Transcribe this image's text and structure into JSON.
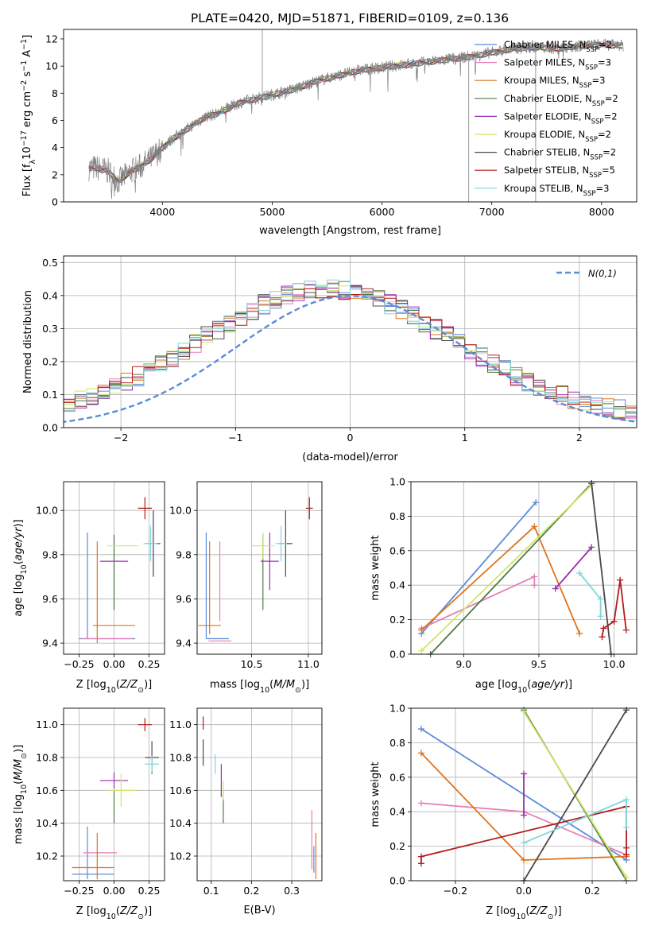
{
  "figure": {
    "title": "PLATE=0420, MJD=51871, FIBERID=0109, z=0.136"
  },
  "models": [
    {
      "name": "Chabrier MILES, N$_{SSP}$=2",
      "label": "Chabrier MILES, N",
      "nssp": "=2",
      "color": "#5b8bd9"
    },
    {
      "name": "Salpeter MILES, N$_{SSP}$=3",
      "label": "Salpeter MILES, N",
      "nssp": "=3",
      "color": "#e67fb8"
    },
    {
      "name": "Kroupa MILES, N$_{SSP}$=3",
      "label": "Kroupa MILES, N",
      "nssp": "=3",
      "color": "#e0731c"
    },
    {
      "name": "Chabrier ELODIE, N$_{SSP}$=2",
      "label": "Chabrier ELODIE, N",
      "nssp": "=2",
      "color": "#4f7a46"
    },
    {
      "name": "Salpeter ELODIE, N$_{SSP}$=2",
      "label": "Salpeter ELODIE, N",
      "nssp": "=2",
      "color": "#9a2fb0"
    },
    {
      "name": "Kroupa ELODIE, N$_{SSP}$=2",
      "label": "Kroupa ELODIE, N",
      "nssp": "=2",
      "color": "#cfe76a"
    },
    {
      "name": "Chabrier STELIB, N$_{SSP}$=2",
      "label": "Chabrier STELIB, N",
      "nssp": "=2",
      "color": "#4a4a4a"
    },
    {
      "name": "Salpeter STELIB, N$_{SSP}$=5",
      "label": "Salpeter STELIB, N",
      "nssp": "=5",
      "color": "#b31b1b"
    },
    {
      "name": "Kroupa STELIB, N$_{SSP}$=3",
      "label": "Kroupa STELIB, N",
      "nssp": "=3",
      "color": "#7fd6dd"
    }
  ],
  "chart_data": [
    {
      "id": "spectrum",
      "type": "line",
      "xlabel": "wavelength [Angstrom, rest frame]",
      "ylabel": "Flux [f_λ10^-17 erg cm^-2 s^-1 A^-1]",
      "xlim": [
        3100,
        8320
      ],
      "ylim": [
        0,
        12.7
      ],
      "xticks": [
        4000,
        5000,
        6000,
        7000,
        8000
      ],
      "yticks": [
        0,
        2,
        4,
        6,
        8,
        10,
        12
      ],
      "grid": false,
      "legend": "top-right",
      "data_color": "#808080",
      "continuum": {
        "x": [
          3330,
          3400,
          3500,
          3600,
          3700,
          3800,
          3900,
          4000,
          4100,
          4200,
          4300,
          4400,
          4500,
          4600,
          4700,
          4800,
          4900,
          5000,
          5200,
          5400,
          5600,
          5800,
          6000,
          6200,
          6400,
          6600,
          6800,
          7000,
          7200,
          7400,
          7600,
          7800,
          8000,
          8200
        ],
        "y": [
          2.5,
          2.5,
          2.3,
          1.5,
          2.2,
          2.6,
          3.2,
          4.0,
          4.7,
          5.2,
          5.8,
          6.3,
          6.5,
          6.9,
          7.3,
          7.5,
          7.7,
          7.9,
          8.3,
          8.9,
          9.3,
          9.7,
          9.9,
          10.1,
          10.3,
          10.5,
          10.7,
          11.0,
          11.3,
          11.4,
          11.3,
          11.5,
          11.6,
          11.5
        ]
      },
      "spikes": [
        {
          "x": 4910,
          "y": 12.7
        },
        {
          "x": 6790,
          "y": 0
        },
        {
          "x": 7400,
          "y": 0
        }
      ]
    },
    {
      "id": "residuals",
      "type": "line",
      "xlabel": "(data-model)/error",
      "ylabel": "Normed distribution",
      "xlim": [
        -2.5,
        2.5
      ],
      "ylim": [
        0,
        0.52
      ],
      "xticks": [
        -2,
        -1,
        0,
        1,
        2
      ],
      "yticks": [
        0.0,
        0.1,
        0.2,
        0.3,
        0.4,
        0.5
      ],
      "grid": true,
      "legend": "top-right",
      "gaussian_label": "N(0,1)",
      "gaussian_color": "#5b8bd9",
      "histogram_bin_width": 0.1
    },
    {
      "id": "age_vs_Z",
      "type": "scatter",
      "xlabel": "Z [log10(Z/Z⊙)]",
      "ylabel": "age  [log10(age/yr)]",
      "xlim": [
        -0.36,
        0.36
      ],
      "ylim": [
        9.35,
        10.13
      ],
      "xticks": [
        -0.25,
        0.0,
        0.25
      ],
      "yticks": [
        9.4,
        9.6,
        9.8,
        10.0
      ],
      "xticklabels": [
        "−0.25",
        "0.00",
        "0.25"
      ],
      "yticklabels": [
        "9.4",
        "9.6",
        "9.8",
        "10.0"
      ],
      "grid": true,
      "points": [
        {
          "model": 0,
          "x": -0.05,
          "y": 9.42,
          "xerr": 0.2,
          "yerr": 0.0
        },
        {
          "model": 0,
          "x": -0.19,
          "y": 9.66,
          "xerr": 0.0,
          "yerr": 0.24
        },
        {
          "model": 1,
          "x": -0.05,
          "y": 9.42,
          "xerr": 0.18,
          "yerr": 0.0
        },
        {
          "model": 1,
          "x": 0.0,
          "y": 9.72,
          "xerr": 0.0,
          "yerr": 0.17
        },
        {
          "model": 2,
          "x": 0.0,
          "y": 9.48,
          "xerr": 0.15,
          "yerr": 0.0
        },
        {
          "model": 2,
          "x": -0.12,
          "y": 9.63,
          "xerr": 0.0,
          "yerr": 0.23
        },
        {
          "model": 3,
          "x": 0.0,
          "y": 9.72,
          "xerr": 0.0,
          "yerr": 0.17
        },
        {
          "model": 4,
          "x": 0.0,
          "y": 9.77,
          "xerr": 0.1,
          "yerr": 0.0
        },
        {
          "model": 5,
          "x": 0.06,
          "y": 9.84,
          "xerr": 0.11,
          "yerr": 0.0
        },
        {
          "model": 6,
          "x": 0.28,
          "y": 9.85,
          "xerr": 0.05,
          "yerr": 0.15
        },
        {
          "model": 7,
          "x": 0.22,
          "y": 10.01,
          "xerr": 0.05,
          "yerr": 0.05
        },
        {
          "model": 8,
          "x": 0.26,
          "y": 9.85,
          "xerr": 0.05,
          "yerr": 0.08
        }
      ]
    },
    {
      "id": "age_vs_mass",
      "type": "scatter",
      "xlabel": "mass [log10(M/M⊙)]",
      "ylabel": "",
      "xlim": [
        10.02,
        11.12
      ],
      "ylim": [
        9.35,
        10.13
      ],
      "xticks": [
        10.5,
        11.0
      ],
      "yticks": [
        9.4,
        9.6,
        9.8,
        10.0
      ],
      "xticklabels": [
        "10.5",
        "11.0"
      ],
      "yticklabels": [
        "9.4",
        "9.6",
        "9.8",
        "10.0"
      ],
      "grid": true,
      "points": [
        {
          "model": 0,
          "x": 10.2,
          "y": 9.42,
          "xerr": 0.1,
          "yerr": 0.0
        },
        {
          "model": 0,
          "x": 10.1,
          "y": 9.66,
          "xerr": 0.0,
          "yerr": 0.24
        },
        {
          "model": 1,
          "x": 10.22,
          "y": 9.41,
          "xerr": 0.1,
          "yerr": 0.0
        },
        {
          "model": 1,
          "x": 10.22,
          "y": 9.68,
          "xerr": 0.0,
          "yerr": 0.18
        },
        {
          "model": 2,
          "x": 10.13,
          "y": 9.48,
          "xerr": 0.1,
          "yerr": 0.0
        },
        {
          "model": 2,
          "x": 10.13,
          "y": 9.65,
          "xerr": 0.0,
          "yerr": 0.21
        },
        {
          "model": 3,
          "x": 10.6,
          "y": 9.72,
          "xerr": 0.0,
          "yerr": 0.17
        },
        {
          "model": 4,
          "x": 10.66,
          "y": 9.77,
          "xerr": 0.08,
          "yerr": 0.13
        },
        {
          "model": 5,
          "x": 10.6,
          "y": 9.84,
          "xerr": 0.1,
          "yerr": 0.06
        },
        {
          "model": 6,
          "x": 10.8,
          "y": 9.85,
          "xerr": 0.06,
          "yerr": 0.15
        },
        {
          "model": 7,
          "x": 11.01,
          "y": 10.01,
          "xerr": 0.03,
          "yerr": 0.05
        },
        {
          "model": 8,
          "x": 10.76,
          "y": 9.85,
          "xerr": 0.05,
          "yerr": 0.08
        }
      ]
    },
    {
      "id": "massweight_vs_age",
      "type": "line",
      "xlabel": "age  [log10(age/yr)]",
      "ylabel": "mass weight",
      "xlim": [
        8.65,
        10.15
      ],
      "ylim": [
        0.0,
        1.0
      ],
      "xticks": [
        9.0,
        9.5,
        10.0
      ],
      "yticks": [
        0.0,
        0.2,
        0.4,
        0.6,
        0.8,
        1.0
      ],
      "xticklabels": [
        "9.0",
        "9.5",
        "10.0"
      ],
      "yticklabels": [
        "0.0",
        "0.2",
        "0.4",
        "0.6",
        "0.8",
        "1.0"
      ],
      "grid": true,
      "series": [
        {
          "model": 0,
          "x": [
            8.72,
            9.48
          ],
          "y": [
            0.12,
            0.88
          ]
        },
        {
          "model": 1,
          "x": [
            8.72,
            9.47,
            9.47
          ],
          "y": [
            0.15,
            0.45,
            0.4
          ]
        },
        {
          "model": 2,
          "x": [
            8.72,
            9.47,
            9.77
          ],
          "y": [
            0.14,
            0.74,
            0.12
          ]
        },
        {
          "model": 3,
          "x": [
            8.78,
            9.85
          ],
          "y": [
            0.0,
            0.99
          ]
        },
        {
          "model": 4,
          "x": [
            9.61,
            9.85
          ],
          "y": [
            0.38,
            0.62
          ]
        },
        {
          "model": 5,
          "x": [
            8.72,
            9.85
          ],
          "y": [
            0.02,
            0.98
          ]
        },
        {
          "model": 6,
          "x": [
            9.85,
            9.98
          ],
          "y": [
            0.99,
            0.0
          ]
        },
        {
          "model": 7,
          "x": [
            9.92,
            9.93,
            10.0,
            10.04,
            10.08
          ],
          "y": [
            0.1,
            0.15,
            0.19,
            0.43,
            0.14
          ]
        },
        {
          "model": 8,
          "x": [
            9.77,
            9.91,
            9.91
          ],
          "y": [
            0.47,
            0.32,
            0.22
          ]
        }
      ]
    },
    {
      "id": "mass_vs_Z",
      "type": "scatter",
      "xlabel": "Z [log10(Z/Z⊙)]",
      "ylabel": "mass [log10(M/M⊙)]",
      "xlim": [
        -0.36,
        0.36
      ],
      "ylim": [
        10.05,
        11.1
      ],
      "xticks": [
        -0.25,
        0.0,
        0.25
      ],
      "yticks": [
        10.2,
        10.4,
        10.6,
        10.8,
        11.0
      ],
      "xticklabels": [
        "−0.25",
        "0.00",
        "0.25"
      ],
      "yticklabels": [
        "10.2",
        "10.4",
        "10.6",
        "10.8",
        "11.0"
      ],
      "grid": true,
      "points": [
        {
          "model": 0,
          "x": -0.15,
          "y": 10.09,
          "xerr": 0.15,
          "yerr": 0.0
        },
        {
          "model": 0,
          "x": -0.19,
          "y": 10.22,
          "xerr": 0.0,
          "yerr": 0.16
        },
        {
          "model": 1,
          "x": -0.1,
          "y": 10.22,
          "xerr": 0.12,
          "yerr": 0.0
        },
        {
          "model": 2,
          "x": -0.15,
          "y": 10.13,
          "xerr": 0.15,
          "yerr": 0.0
        },
        {
          "model": 2,
          "x": -0.12,
          "y": 10.2,
          "xerr": 0.0,
          "yerr": 0.14
        },
        {
          "model": 3,
          "x": 0.0,
          "y": 10.5,
          "xerr": 0.0,
          "yerr": 0.1
        },
        {
          "model": 4,
          "x": 0.0,
          "y": 10.66,
          "xerr": 0.1,
          "yerr": 0.05
        },
        {
          "model": 5,
          "x": 0.05,
          "y": 10.6,
          "xerr": 0.1,
          "yerr": 0.1
        },
        {
          "model": 6,
          "x": 0.27,
          "y": 10.8,
          "xerr": 0.05,
          "yerr": 0.1
        },
        {
          "model": 7,
          "x": 0.22,
          "y": 11.0,
          "xerr": 0.05,
          "yerr": 0.04
        },
        {
          "model": 8,
          "x": 0.27,
          "y": 10.76,
          "xerr": 0.05,
          "yerr": 0.05
        }
      ]
    },
    {
      "id": "mass_vs_ebv",
      "type": "scatter",
      "xlabel": "E(B-V)",
      "ylabel": "",
      "xlim": [
        0.065,
        0.375
      ],
      "ylim": [
        10.05,
        11.1
      ],
      "xticks": [
        0.1,
        0.2,
        0.3
      ],
      "yticks": [
        10.2,
        10.4,
        10.6,
        10.8,
        11.0
      ],
      "xticklabels": [
        "0.1",
        "0.2",
        "0.3"
      ],
      "yticklabels": [
        "10.2",
        "10.4",
        "10.6",
        "10.8",
        "11.0"
      ],
      "grid": true,
      "points": [
        {
          "model": 7,
          "x": 0.08,
          "y": 11.01,
          "xerr": 0.0,
          "yerr": 0.04
        },
        {
          "model": 6,
          "x": 0.08,
          "y": 10.83,
          "xerr": 0.0,
          "yerr": 0.08
        },
        {
          "model": 8,
          "x": 0.11,
          "y": 10.76,
          "xerr": 0.0,
          "yerr": 0.06
        },
        {
          "model": 4,
          "x": 0.125,
          "y": 10.66,
          "xerr": 0.0,
          "yerr": 0.1
        },
        {
          "model": 3,
          "x": 0.13,
          "y": 10.5,
          "xerr": 0.0,
          "yerr": 0.1
        },
        {
          "model": 5,
          "x": 0.13,
          "y": 10.6,
          "xerr": 0.0,
          "yerr": 0.06
        },
        {
          "model": 1,
          "x": 0.35,
          "y": 10.3,
          "xerr": 0.0,
          "yerr": 0.18
        },
        {
          "model": 2,
          "x": 0.36,
          "y": 10.2,
          "xerr": 0.0,
          "yerr": 0.14
        },
        {
          "model": 0,
          "x": 0.355,
          "y": 10.18,
          "xerr": 0.0,
          "yerr": 0.08
        }
      ]
    },
    {
      "id": "massweight_vs_Z",
      "type": "line",
      "xlabel": "Z [log10(Z/Z⊙)]",
      "ylabel": "mass weight",
      "xlim": [
        -0.33,
        0.33
      ],
      "ylim": [
        0.0,
        1.0
      ],
      "xticks": [
        -0.2,
        0.0,
        0.2
      ],
      "yticks": [
        0.0,
        0.2,
        0.4,
        0.6,
        0.8,
        1.0
      ],
      "xticklabels": [
        "−0.2",
        "0.0",
        "0.2"
      ],
      "yticklabels": [
        "0.0",
        "0.2",
        "0.4",
        "0.6",
        "0.8",
        "1.0"
      ],
      "grid": true,
      "series": [
        {
          "model": 0,
          "x": [
            -0.3,
            0.3
          ],
          "y": [
            0.88,
            0.12
          ]
        },
        {
          "model": 1,
          "x": [
            -0.3,
            0.0,
            0.3
          ],
          "y": [
            0.45,
            0.4,
            0.15
          ]
        },
        {
          "model": 2,
          "x": [
            -0.3,
            0.0,
            0.3
          ],
          "y": [
            0.74,
            0.12,
            0.14
          ]
        },
        {
          "model": 3,
          "x": [
            0.0,
            0.3
          ],
          "y": [
            0.99,
            0.0
          ]
        },
        {
          "model": 4,
          "x": [
            0.0,
            0.0
          ],
          "y": [
            0.38,
            0.62
          ]
        },
        {
          "model": 5,
          "x": [
            0.0,
            0.3
          ],
          "y": [
            0.98,
            0.02
          ]
        },
        {
          "model": 6,
          "x": [
            0.0,
            0.3
          ],
          "y": [
            0.0,
            0.99
          ]
        },
        {
          "model": 7,
          "x": [
            -0.3,
            -0.3,
            0.3,
            0.3,
            0.3
          ],
          "y": [
            0.1,
            0.14,
            0.43,
            0.19,
            0.15
          ]
        },
        {
          "model": 8,
          "x": [
            0.0,
            0.3,
            0.3
          ],
          "y": [
            0.22,
            0.47,
            0.31
          ]
        }
      ]
    }
  ]
}
